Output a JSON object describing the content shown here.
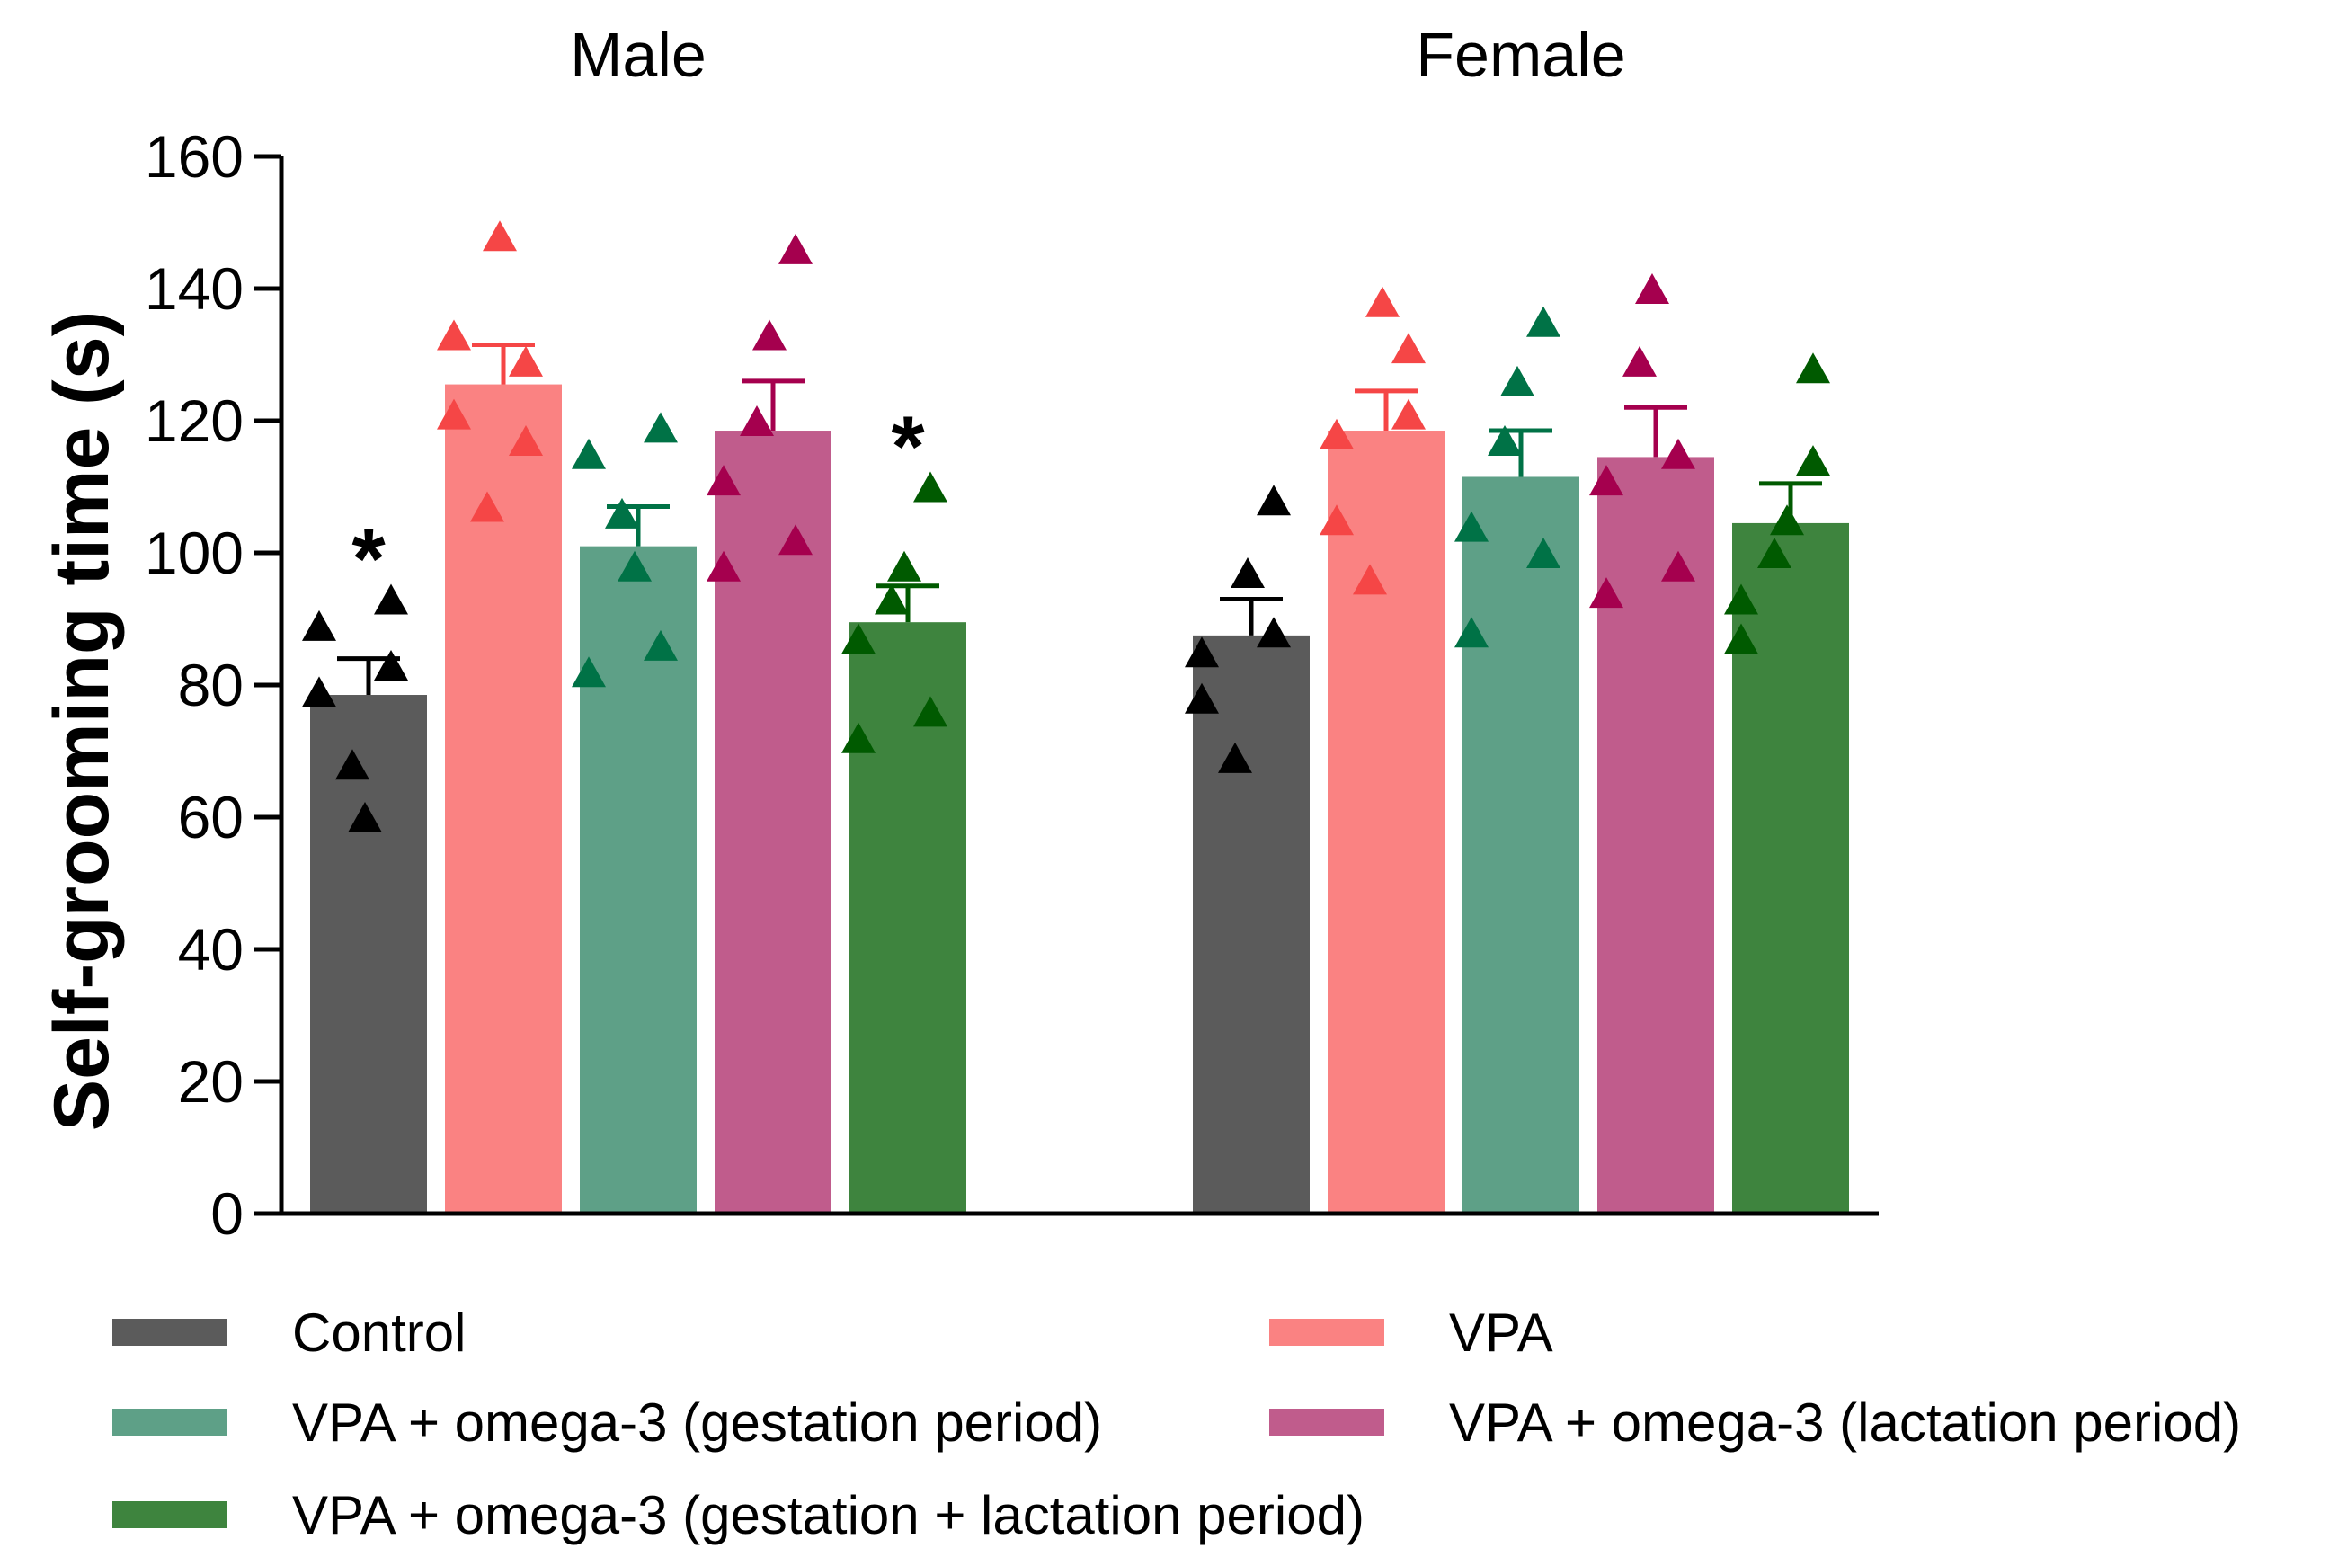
{
  "chart_data": {
    "type": "bar",
    "title": "",
    "xlabel": "",
    "ylabel": "Self-grooming time (s)",
    "ylim": [
      0,
      160
    ],
    "yticks": [
      0,
      20,
      40,
      60,
      80,
      100,
      120,
      140,
      160
    ],
    "grid": false,
    "legend_position": "bottom",
    "categories": [
      "Male",
      "Female"
    ],
    "series": [
      {
        "name": "Control",
        "bar_color": "#5b5b5b",
        "point_color": "#000000",
        "means": [
          78.5,
          87.5
        ],
        "sem": [
          5.5,
          5.5
        ],
        "points": [
          [
            89,
            79,
            68,
            60,
            93,
            83
          ],
          [
            85,
            78,
            69,
            97,
            108,
            88
          ]
        ],
        "significance": [
          "*",
          ""
        ]
      },
      {
        "name": "VPA",
        "bar_color": "#fa8282",
        "point_color": "#f54646",
        "means": [
          125.5,
          118.5
        ],
        "sem": [
          6.0,
          6.0
        ],
        "points": [
          [
            133,
            121,
            107,
            148,
            129,
            117
          ],
          [
            118,
            105,
            96,
            138,
            131,
            121
          ]
        ],
        "significance": [
          "",
          ""
        ]
      },
      {
        "name": "VPA + omega-3 (gestation period)",
        "bar_color": "#5ea087",
        "point_color": "#007246",
        "means": [
          101.0,
          111.5
        ],
        "sem": [
          6.0,
          7.0
        ],
        "points": [
          [
            115,
            82,
            106,
            98,
            119,
            86
          ],
          [
            104,
            88,
            117,
            126,
            135,
            100
          ]
        ],
        "significance": [
          "",
          ""
        ]
      },
      {
        "name": "VPA + omega-3 (lactation period)",
        "bar_color": "#c05c8c",
        "point_color": "#a5004e",
        "means": [
          118.5,
          114.5
        ],
        "sem": [
          7.5,
          7.5
        ],
        "points": [
          [
            98,
            111,
            120,
            133,
            146,
            102
          ],
          [
            111,
            94,
            129,
            140,
            115,
            98
          ]
        ],
        "significance": [
          "",
          ""
        ]
      },
      {
        "name": "VPA + omega-3 (gestation + lactation period)",
        "bar_color": "#3e843e",
        "point_color": "#005a00",
        "means": [
          89.5,
          104.5
        ],
        "sem": [
          5.5,
          6.0
        ],
        "points": [
          [
            72,
            87,
            93,
            98,
            110,
            76
          ],
          [
            87,
            93,
            100,
            105,
            114,
            128
          ]
        ],
        "significance": [
          "*",
          ""
        ]
      }
    ]
  }
}
